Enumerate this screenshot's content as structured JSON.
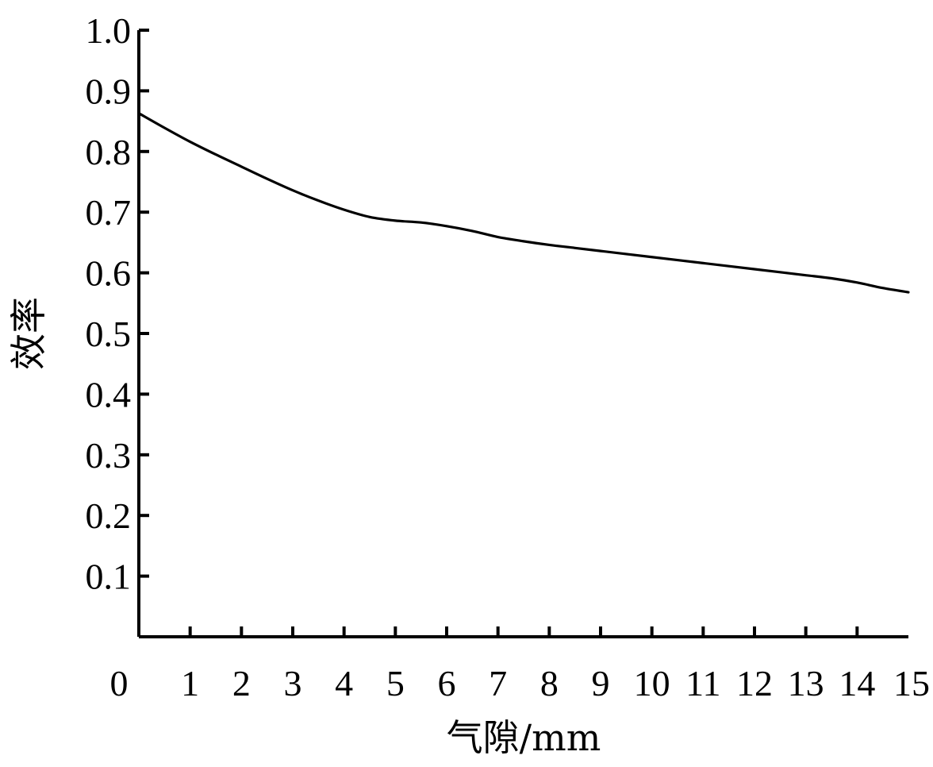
{
  "chart_data": {
    "type": "line",
    "title": "",
    "xlabel": "气隙/mm",
    "ylabel": "效率",
    "xlim": [
      0,
      15
    ],
    "ylim": [
      0,
      1.0
    ],
    "grid": false,
    "legend": "none",
    "x_ticks": [
      "0",
      "1",
      "2",
      "3",
      "4",
      "5",
      "6",
      "7",
      "8",
      "9",
      "10",
      "11",
      "12",
      "13",
      "14",
      "15"
    ],
    "y_ticks": [
      "0.1",
      "0.2",
      "0.3",
      "0.4",
      "0.5",
      "0.6",
      "0.7",
      "0.8",
      "0.9",
      "1.0"
    ],
    "series": [
      {
        "color": "#000000",
        "x": [
          0,
          0.5,
          1,
          1.5,
          2,
          2.5,
          3,
          3.5,
          4,
          4.5,
          5,
          5.5,
          6,
          6.5,
          7,
          7.5,
          8,
          8.5,
          9,
          9.5,
          10,
          10.5,
          11,
          11.5,
          12,
          12.5,
          13,
          13.5,
          14,
          14.5,
          15
        ],
        "y": [
          0.863,
          0.839,
          0.816,
          0.795,
          0.775,
          0.755,
          0.736,
          0.719,
          0.704,
          0.692,
          0.686,
          0.683,
          0.677,
          0.669,
          0.659,
          0.652,
          0.646,
          0.641,
          0.636,
          0.631,
          0.626,
          0.621,
          0.616,
          0.611,
          0.606,
          0.601,
          0.596,
          0.591,
          0.584,
          0.575,
          0.568
        ]
      }
    ]
  }
}
